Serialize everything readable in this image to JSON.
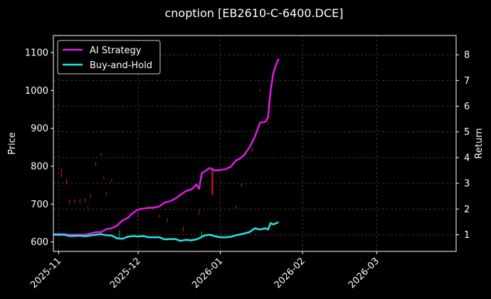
{
  "chart_data": {
    "type": "line",
    "title": "cnoption [EB2610-C-6400.DCE]",
    "ylabel": "Price",
    "ylabel_right": "Return",
    "xlabel": "",
    "x_ticks": [
      "2025-11",
      "2025-12",
      "2026-01",
      "2026-02",
      "2026-03"
    ],
    "x_tick_dates": [
      "2025-11-01",
      "2025-12-01",
      "2026-01-01",
      "2026-02-01",
      "2026-03-01"
    ],
    "x_range": [
      "2025-10-30",
      "2026-03-31"
    ],
    "ylim": [
      575,
      1145
    ],
    "y_ticks": [
      600,
      700,
      800,
      900,
      1000,
      1100
    ],
    "ylim_right": [
      0.35,
      8.75
    ],
    "y_ticks_right": [
      1,
      2,
      3,
      4,
      5,
      6,
      7,
      8
    ],
    "grid": true,
    "legend_position": "top-left",
    "colors": {
      "background": "#000000",
      "ai": "#e01be6",
      "bh": "#27e3e8",
      "candle_up": "#22bb22",
      "candle_down": "#e01818",
      "grid": "#555555"
    },
    "series": [
      {
        "name": "AI Strategy",
        "axis": "right",
        "x": [
          "2025-10-30",
          "2025-11-01",
          "2025-11-03",
          "2025-11-05",
          "2025-11-07",
          "2025-11-09",
          "2025-11-11",
          "2025-11-13",
          "2025-11-15",
          "2025-11-17",
          "2025-11-19",
          "2025-11-21",
          "2025-11-23",
          "2025-11-25",
          "2025-11-27",
          "2025-11-29",
          "2025-12-01",
          "2025-12-03",
          "2025-12-05",
          "2025-12-07",
          "2025-12-09",
          "2025-12-11",
          "2025-12-13",
          "2025-12-15",
          "2025-12-17",
          "2025-12-19",
          "2025-12-21",
          "2025-12-23",
          "2025-12-24",
          "2025-12-25",
          "2025-12-26",
          "2025-12-28",
          "2025-12-30",
          "2026-01-01",
          "2026-01-03",
          "2026-01-05",
          "2026-01-07",
          "2026-01-08",
          "2026-01-10",
          "2026-01-12",
          "2026-01-14",
          "2026-01-16",
          "2026-01-18",
          "2026-01-19",
          "2026-01-20",
          "2026-01-21",
          "2026-01-22",
          "2026-01-23"
        ],
        "values": [
          1.02,
          1.02,
          1.02,
          1.0,
          1.0,
          1.0,
          1.0,
          1.05,
          1.1,
          1.1,
          1.22,
          1.25,
          1.35,
          1.55,
          1.65,
          1.85,
          1.98,
          2.02,
          2.05,
          2.05,
          2.1,
          2.25,
          2.3,
          2.4,
          2.55,
          2.7,
          2.76,
          2.95,
          2.78,
          3.4,
          3.45,
          3.6,
          3.5,
          3.52,
          3.55,
          3.65,
          3.9,
          3.93,
          4.1,
          4.4,
          4.8,
          5.35,
          5.4,
          5.55,
          6.6,
          7.3,
          7.6,
          7.85
        ]
      },
      {
        "name": "Buy-and-Hold",
        "axis": "right",
        "x": [
          "2025-10-30",
          "2025-11-01",
          "2025-11-03",
          "2025-11-05",
          "2025-11-07",
          "2025-11-09",
          "2025-11-11",
          "2025-11-13",
          "2025-11-15",
          "2025-11-17",
          "2025-11-19",
          "2025-11-21",
          "2025-11-23",
          "2025-11-25",
          "2025-11-27",
          "2025-11-29",
          "2025-12-01",
          "2025-12-03",
          "2025-12-05",
          "2025-12-07",
          "2025-12-09",
          "2025-12-11",
          "2025-12-13",
          "2025-12-15",
          "2025-12-17",
          "2025-12-19",
          "2025-12-21",
          "2025-12-23",
          "2025-12-24",
          "2025-12-25",
          "2025-12-26",
          "2025-12-28",
          "2025-12-30",
          "2026-01-01",
          "2026-01-03",
          "2026-01-05",
          "2026-01-07",
          "2026-01-08",
          "2026-01-10",
          "2026-01-12",
          "2026-01-14",
          "2026-01-16",
          "2026-01-18",
          "2026-01-19",
          "2026-01-20",
          "2026-01-21",
          "2026-01-22",
          "2026-01-23"
        ],
        "values": [
          1.0,
          1.0,
          1.0,
          0.95,
          0.95,
          0.96,
          0.94,
          0.97,
          1.0,
          1.02,
          0.98,
          0.97,
          0.86,
          0.84,
          0.92,
          0.95,
          0.93,
          0.95,
          0.9,
          0.9,
          0.9,
          0.82,
          0.83,
          0.83,
          0.76,
          0.8,
          0.78,
          0.82,
          0.86,
          0.92,
          0.97,
          1.0,
          0.94,
          0.9,
          0.9,
          0.92,
          0.98,
          1.0,
          1.05,
          1.1,
          1.25,
          1.2,
          1.25,
          1.2,
          1.45,
          1.4,
          1.45,
          1.48
        ]
      }
    ],
    "candles": [
      {
        "x": "2025-10-30",
        "low": 582,
        "high": 604,
        "dir": "down"
      },
      {
        "x": "2025-11-02",
        "low": 772,
        "high": 794,
        "dir": "down"
      },
      {
        "x": "2025-11-04",
        "low": 752,
        "high": 766,
        "dir": "down"
      },
      {
        "x": "2025-11-05",
        "low": 700,
        "high": 712,
        "dir": "down"
      },
      {
        "x": "2025-11-07",
        "low": 702,
        "high": 712,
        "dir": "down"
      },
      {
        "x": "2025-11-09",
        "low": 703,
        "high": 712,
        "dir": "down"
      },
      {
        "x": "2025-11-11",
        "low": 705,
        "high": 715,
        "dir": "down"
      },
      {
        "x": "2025-11-12",
        "low": 686,
        "high": 693,
        "dir": "down"
      },
      {
        "x": "2025-11-13",
        "low": 715,
        "high": 725,
        "dir": "down"
      },
      {
        "x": "2025-11-15",
        "low": 802,
        "high": 812,
        "dir": "down"
      },
      {
        "x": "2025-11-17",
        "low": 827,
        "high": 835,
        "dir": "down"
      },
      {
        "x": "2025-11-18",
        "low": 765,
        "high": 772,
        "dir": "down"
      },
      {
        "x": "2025-11-19",
        "low": 723,
        "high": 732,
        "dir": "down"
      },
      {
        "x": "2025-11-21",
        "low": 758,
        "high": 766,
        "dir": "down"
      },
      {
        "x": "2025-11-24",
        "low": 612,
        "high": 632,
        "dir": "up"
      },
      {
        "x": "2025-12-01",
        "low": 665,
        "high": 680,
        "dir": "down"
      },
      {
        "x": "2025-12-09",
        "low": 665,
        "high": 672,
        "dir": "down"
      },
      {
        "x": "2025-12-12",
        "low": 652,
        "high": 662,
        "dir": "down"
      },
      {
        "x": "2025-12-18",
        "low": 628,
        "high": 640,
        "dir": "down"
      },
      {
        "x": "2025-12-24",
        "low": 672,
        "high": 685,
        "dir": "down"
      },
      {
        "x": "2025-12-25",
        "low": 610,
        "high": 628,
        "dir": "up"
      },
      {
        "x": "2025-12-29",
        "low": 725,
        "high": 795,
        "dir": "down"
      },
      {
        "x": "2026-01-07",
        "low": 688,
        "high": 696,
        "dir": "down"
      },
      {
        "x": "2026-01-09",
        "low": 745,
        "high": 755,
        "dir": "down"
      },
      {
        "x": "2026-01-13",
        "low": 838,
        "high": 848,
        "dir": "down"
      },
      {
        "x": "2026-01-16",
        "low": 998,
        "high": 1004,
        "dir": "down"
      },
      {
        "x": "2026-01-19",
        "low": 912,
        "high": 920,
        "dir": "down"
      }
    ]
  }
}
